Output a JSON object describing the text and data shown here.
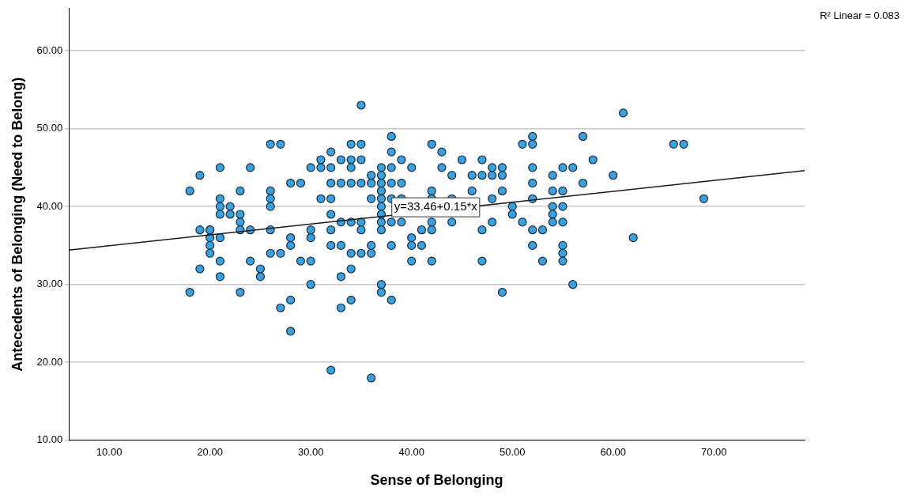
{
  "chart_data": {
    "type": "scatter",
    "xlabel": "Sense of Belonging",
    "ylabel": "Antecedents of Belonging (Need to Belong)",
    "xlim": [
      6,
      79
    ],
    "ylim": [
      10,
      65.4
    ],
    "xticks": [
      {
        "value": 10,
        "label": "10.00"
      },
      {
        "value": 20,
        "label": "20.00"
      },
      {
        "value": 30,
        "label": "30.00"
      },
      {
        "value": 40,
        "label": "40.00"
      },
      {
        "value": 50,
        "label": "50.00"
      },
      {
        "value": 60,
        "label": "60.00"
      },
      {
        "value": 70,
        "label": "70.00"
      }
    ],
    "yticks": [
      {
        "value": 10,
        "label": "10.00"
      },
      {
        "value": 20,
        "label": "20.00"
      },
      {
        "value": 30,
        "label": "30.00"
      },
      {
        "value": 40,
        "label": "40.00"
      },
      {
        "value": 50,
        "label": "50.00"
      },
      {
        "value": 60,
        "label": "60.00"
      }
    ],
    "grid": "y",
    "legend": false,
    "annotations": [
      {
        "text": "y=33.46+0.15*x",
        "x": 42.4,
        "y": 39.9
      },
      "R² Linear = 0.083"
    ],
    "series": [
      {
        "marker": "circle",
        "color": "#35a2e6",
        "x": [
          18,
          18,
          19,
          19,
          19,
          20,
          20,
          20,
          20,
          20,
          21,
          21,
          21,
          21,
          21,
          21,
          21,
          22,
          22,
          23,
          23,
          23,
          23,
          23,
          24,
          24,
          24,
          25,
          25,
          26,
          26,
          26,
          26,
          26,
          26,
          27,
          27,
          27,
          28,
          28,
          28,
          28,
          28,
          29,
          29,
          30,
          30,
          30,
          30,
          30,
          31,
          31,
          31,
          32,
          32,
          32,
          32,
          32,
          32,
          32,
          32,
          33,
          33,
          33,
          33,
          33,
          33,
          34,
          34,
          34,
          34,
          34,
          34,
          34,
          34,
          35,
          35,
          35,
          35,
          35,
          35,
          35,
          36,
          36,
          36,
          36,
          36,
          36,
          37,
          37,
          37,
          37,
          37,
          37,
          37,
          37,
          37,
          37,
          37,
          38,
          38,
          38,
          38,
          38,
          38,
          38,
          38,
          39,
          39,
          39,
          39,
          40,
          40,
          40,
          40,
          41,
          41,
          42,
          42,
          42,
          42,
          42,
          42,
          43,
          43,
          44,
          44,
          44,
          45,
          46,
          46,
          47,
          47,
          47,
          47,
          48,
          48,
          48,
          48,
          49,
          49,
          49,
          49,
          50,
          50,
          51,
          51,
          52,
          52,
          52,
          52,
          52,
          52,
          52,
          53,
          53,
          54,
          54,
          54,
          54,
          54,
          55,
          55,
          55,
          55,
          55,
          55,
          55,
          56,
          56,
          57,
          57,
          58,
          60,
          61,
          62,
          66,
          67,
          69
        ],
        "values": [
          42,
          29,
          44,
          37,
          32,
          37,
          36,
          35,
          34,
          37,
          45,
          41,
          40,
          39,
          36,
          33,
          31,
          40,
          39,
          42,
          39,
          38,
          37,
          29,
          45,
          37,
          33,
          32,
          31,
          48,
          42,
          41,
          40,
          37,
          34,
          48,
          34,
          27,
          43,
          36,
          35,
          28,
          24,
          43,
          33,
          45,
          37,
          36,
          33,
          30,
          46,
          45,
          41,
          47,
          45,
          43,
          41,
          39,
          37,
          35,
          19,
          46,
          43,
          38,
          35,
          31,
          27,
          48,
          46,
          45,
          43,
          38,
          34,
          32,
          28,
          53,
          48,
          46,
          43,
          38,
          37,
          34,
          44,
          43,
          41,
          35,
          34,
          18,
          45,
          44,
          43,
          42,
          41,
          40,
          39,
          38,
          37,
          30,
          29,
          49,
          47,
          45,
          43,
          41,
          38,
          35,
          28,
          46,
          43,
          41,
          38,
          45,
          36,
          35,
          33,
          37,
          35,
          48,
          42,
          41,
          38,
          37,
          33,
          47,
          45,
          44,
          41,
          38,
          46,
          44,
          42,
          46,
          44,
          37,
          33,
          45,
          44,
          41,
          38,
          45,
          44,
          42,
          29,
          40,
          39,
          48,
          38,
          49,
          48,
          45,
          43,
          41,
          37,
          35,
          37,
          33,
          44,
          42,
          40,
          39,
          38,
          45,
          42,
          40,
          38,
          35,
          34,
          33,
          45,
          30,
          49,
          43,
          46,
          44,
          52,
          36,
          48,
          48,
          41
        ]
      },
      {
        "type": "line",
        "color": "#1a1a1a",
        "line_style": "solid",
        "x": [
          6,
          79
        ],
        "values": [
          34.4,
          44.6
        ]
      }
    ]
  }
}
